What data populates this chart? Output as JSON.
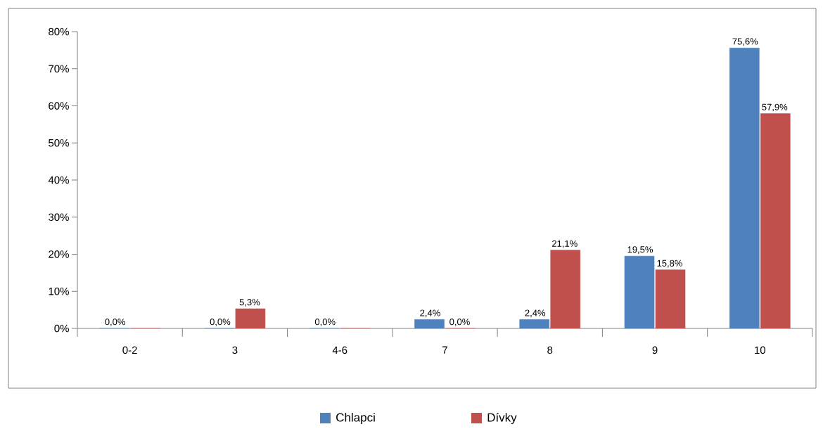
{
  "chart_data": {
    "type": "bar",
    "categories": [
      "0-2",
      "3",
      "4-6",
      "7",
      "8",
      "9",
      "10"
    ],
    "series": [
      {
        "name": "Chlapci",
        "color": "#4f81bd",
        "values": [
          0,
          0,
          0,
          2.4,
          2.4,
          19.5,
          75.6
        ],
        "value_labels": [
          "0,0%",
          "0,0%",
          "0,0%",
          "2,4%",
          "2,4%",
          "19,5%",
          "75,6%"
        ]
      },
      {
        "name": "Dívky",
        "color": "#c0504d",
        "values": [
          0,
          5.3,
          0,
          0,
          21.1,
          15.8,
          57.9
        ],
        "value_labels": [
          null,
          "5,3%",
          null,
          "0,0%",
          "21,1%",
          "15,8%",
          "57,9%"
        ]
      }
    ],
    "ylim": [
      0,
      80
    ],
    "yticks": [
      {
        "value": 0,
        "label": "0%"
      },
      {
        "value": 10,
        "label": "10%"
      },
      {
        "value": 20,
        "label": "20%"
      },
      {
        "value": 30,
        "label": "30%"
      },
      {
        "value": 40,
        "label": "40%"
      },
      {
        "value": 50,
        "label": "50%"
      },
      {
        "value": 60,
        "label": "60%"
      },
      {
        "value": 70,
        "label": "70%"
      },
      {
        "value": 80,
        "label": "80%"
      }
    ],
    "grid": false,
    "legend": "bottom"
  }
}
